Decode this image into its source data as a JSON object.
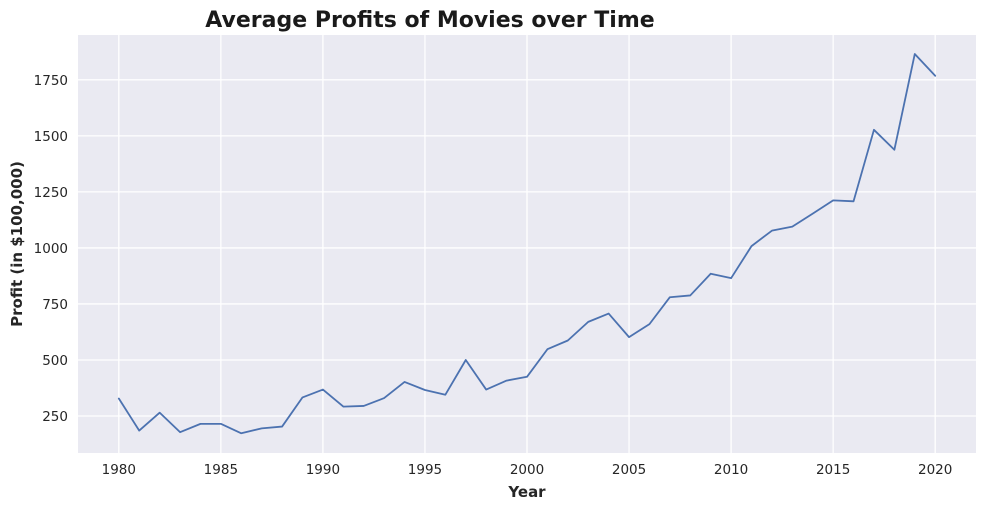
{
  "chart_data": {
    "type": "line",
    "title": "Average Profits of Movies over Time",
    "xlabel": "Year",
    "ylabel": "Profit (in $100,000)",
    "xlim": [
      1978,
      2022
    ],
    "ylim": [
      85,
      1950
    ],
    "xticks": [
      1980,
      1985,
      1990,
      1995,
      2000,
      2005,
      2010,
      2015,
      2020
    ],
    "yticks": [
      250,
      500,
      750,
      1000,
      1250,
      1500,
      1750
    ],
    "grid": true,
    "colors": {
      "background": "#eaeaf2",
      "grid": "#ffffff",
      "line": "#4c72b0"
    },
    "series": [
      {
        "name": "Average Profit",
        "x": [
          1980,
          1981,
          1982,
          1983,
          1984,
          1985,
          1986,
          1987,
          1988,
          1989,
          1990,
          1991,
          1992,
          1993,
          1994,
          1995,
          1996,
          1997,
          1998,
          1999,
          2000,
          2001,
          2002,
          2003,
          2004,
          2005,
          2006,
          2007,
          2008,
          2009,
          2010,
          2011,
          2012,
          2013,
          2014,
          2015,
          2016,
          2017,
          2018,
          2019,
          2020
        ],
        "values": [
          328,
          185,
          265,
          178,
          215,
          215,
          173,
          195,
          203,
          333,
          368,
          292,
          295,
          330,
          402,
          366,
          345,
          500,
          368,
          408,
          425,
          548,
          587,
          670,
          707,
          602,
          660,
          780,
          788,
          885,
          865,
          1008,
          1077,
          1095,
          1153,
          1212,
          1208,
          1527,
          1438,
          1865,
          1768
        ]
      }
    ]
  }
}
